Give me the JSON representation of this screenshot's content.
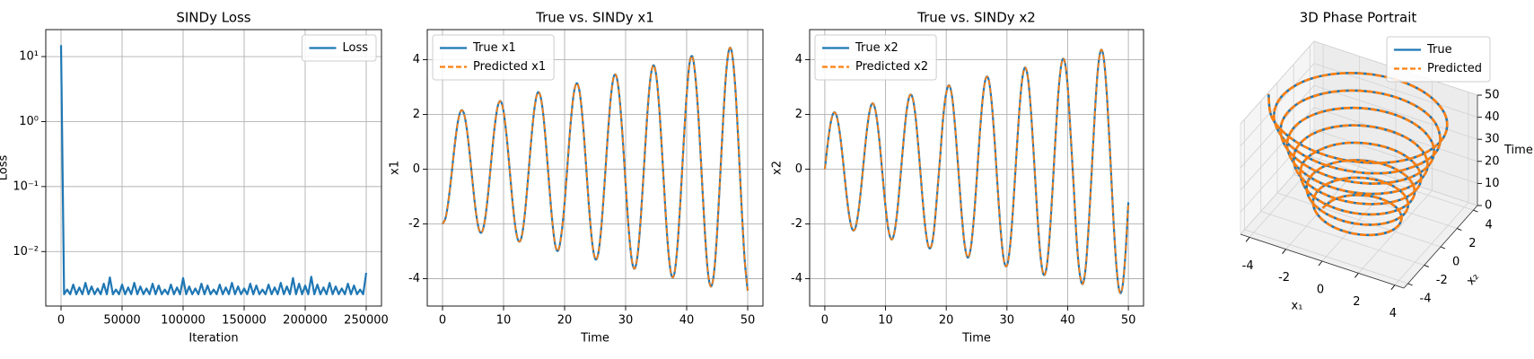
{
  "chart_data": [
    {
      "type": "line",
      "title": "SINDy Loss",
      "xlabel": "Iteration",
      "ylabel": "Loss",
      "yscale": "log",
      "grid": true,
      "legend": "upper right",
      "xlim": [
        -12500,
        262500
      ],
      "xticks": [
        0,
        50000,
        100000,
        150000,
        200000,
        250000
      ],
      "ylim": [
        0.00145,
        26
      ],
      "yticks": [
        {
          "value": 0.01,
          "label": "10⁻²"
        },
        {
          "value": 0.1,
          "label": "10⁻¹"
        },
        {
          "value": 1,
          "label": "10⁰"
        },
        {
          "value": 10,
          "label": "10¹"
        }
      ],
      "x": [
        0,
        2500,
        5000,
        7500,
        10000,
        12500,
        15000,
        17500,
        20000,
        22500,
        25000,
        27500,
        30000,
        32500,
        35000,
        37500,
        40000,
        42500,
        45000,
        47500,
        50000,
        52500,
        55000,
        57500,
        60000,
        62500,
        65000,
        67500,
        70000,
        72500,
        75000,
        77500,
        80000,
        82500,
        85000,
        87500,
        90000,
        92500,
        95000,
        97500,
        100000,
        102500,
        105000,
        107500,
        110000,
        112500,
        115000,
        117500,
        120000,
        122500,
        125000,
        127500,
        130000,
        132500,
        135000,
        137500,
        140000,
        142500,
        145000,
        147500,
        150000,
        152500,
        155000,
        157500,
        160000,
        162500,
        165000,
        167500,
        170000,
        172500,
        175000,
        177500,
        180000,
        182500,
        185000,
        187500,
        190000,
        192500,
        195000,
        197500,
        200000,
        202500,
        205000,
        207500,
        210000,
        212500,
        215000,
        217500,
        220000,
        222500,
        225000,
        227500,
        230000,
        232500,
        235000,
        237500,
        240000,
        242500,
        245000,
        247500,
        250000
      ],
      "series": [
        {
          "name": "Loss",
          "color": "#1f77b4",
          "linestyle": "solid",
          "values": [
            15,
            0.0022,
            0.0026,
            0.0022,
            0.0031,
            0.0022,
            0.0028,
            0.0022,
            0.0033,
            0.0022,
            0.0029,
            0.0022,
            0.0027,
            0.0022,
            0.0032,
            0.0022,
            0.004,
            0.0022,
            0.0026,
            0.0022,
            0.0031,
            0.0022,
            0.0028,
            0.0022,
            0.0033,
            0.0022,
            0.0029,
            0.0022,
            0.0027,
            0.0022,
            0.0032,
            0.0022,
            0.003,
            0.0022,
            0.0026,
            0.0022,
            0.0031,
            0.0022,
            0.0028,
            0.0022,
            0.0039,
            0.0022,
            0.0029,
            0.0022,
            0.0027,
            0.0022,
            0.0032,
            0.0022,
            0.003,
            0.0022,
            0.0026,
            0.0022,
            0.0031,
            0.0022,
            0.0028,
            0.0022,
            0.0033,
            0.0022,
            0.0029,
            0.0022,
            0.0027,
            0.0022,
            0.0032,
            0.0022,
            0.003,
            0.0022,
            0.0026,
            0.0022,
            0.0031,
            0.0022,
            0.0028,
            0.0022,
            0.0033,
            0.0022,
            0.0029,
            0.0022,
            0.0039,
            0.0022,
            0.0032,
            0.0022,
            0.003,
            0.0022,
            0.0041,
            0.0022,
            0.0031,
            0.0022,
            0.0028,
            0.0022,
            0.0033,
            0.0022,
            0.0029,
            0.0022,
            0.0027,
            0.0022,
            0.0032,
            0.0022,
            0.003,
            0.0022,
            0.0026,
            0.0022,
            0.0047
          ]
        }
      ]
    },
    {
      "type": "line",
      "title": "True vs. SINDy x1",
      "xlabel": "Time",
      "ylabel": "x1",
      "grid": true,
      "legend": "upper left",
      "xlim": [
        -2.5,
        52.5
      ],
      "xticks": [
        0,
        10,
        20,
        30,
        40,
        50
      ],
      "ylim": [
        -5,
        5.1
      ],
      "yticks": [
        -4,
        -2,
        0,
        2,
        4
      ],
      "x": [
        0,
        0.5,
        1,
        1.5,
        2,
        2.5,
        3,
        3.5,
        4,
        4.5,
        5,
        5.5,
        6,
        6.5,
        7,
        7.5,
        8,
        8.5,
        9,
        9.5,
        10,
        10.5,
        11,
        11.5,
        12,
        12.5,
        13,
        13.5,
        14,
        14.5,
        15,
        15.5,
        16,
        16.5,
        17,
        17.5,
        18,
        18.5,
        19,
        19.5,
        20,
        20.5,
        21,
        21.5,
        22,
        22.5,
        23,
        23.5,
        24,
        24.5,
        25,
        25.5,
        26,
        26.5,
        27,
        27.5,
        28,
        28.5,
        29,
        29.5,
        30,
        30.5,
        31,
        31.5,
        32,
        32.5,
        33,
        33.5,
        34,
        34.5,
        35,
        35.5,
        36,
        36.5,
        37,
        37.5,
        38,
        38.5,
        39,
        39.5,
        40,
        40.5,
        41,
        41.5,
        42,
        42.5,
        43,
        43.5,
        44,
        44.5,
        45,
        45.5,
        46,
        46.5,
        47,
        47.5,
        48,
        48.5,
        49,
        49.5,
        50
      ],
      "series": [
        {
          "name": "True x1",
          "color": "#1f77b4",
          "linestyle": "solid",
          "values": [
            -2,
            -1.78,
            -1.11,
            -0.15,
            0.88,
            1.71,
            2.13,
            2.04,
            1.44,
            0.47,
            -0.64,
            -1.62,
            -2.22,
            -2.28,
            -1.78,
            -0.83,
            0.35,
            1.47,
            2.25,
            2.49,
            2.11,
            1.21,
            -0.01,
            -1.26,
            -2.21,
            -2.64,
            -2.43,
            -1.61,
            -0.37,
            0.98,
            2.11,
            2.75,
            2.71,
            2.01,
            0.79,
            -0.64,
            -1.94,
            -2.81,
            -2.95,
            -2.34,
            -1.24,
            0.24,
            1.69,
            2.76,
            3.14,
            2.77,
            1.7,
            0.2,
            -1.38,
            -2.64,
            -3.27,
            -3.1,
            -2.17,
            -0.68,
            0.99,
            2.45,
            3.33,
            3.39,
            2.62,
            1.2,
            -0.55,
            -2.18,
            -3.3,
            -3.63,
            -3.06,
            -1.73,
            0.05,
            1.84,
            3.2,
            3.79,
            3.45,
            2.26,
            0.5,
            -1.42,
            -3,
            -3.87,
            -3.8,
            -2.78,
            -1.07,
            0.92,
            2.72,
            3.91,
            4.08,
            3.21,
            1.67,
            -0.37,
            -2.35,
            -3.8,
            -4.29,
            -3.75,
            -2.28,
            -0.23,
            1.9,
            3.6,
            4.41,
            4.14,
            2.88,
            0.87,
            -1.37,
            -3.3,
            -4.44
          ]
        },
        {
          "name": "Predicted x1",
          "color": "#ff7f0e",
          "linestyle": "dashed",
          "values": [
            -2,
            -1.78,
            -1.11,
            -0.15,
            0.88,
            1.71,
            2.13,
            2.04,
            1.44,
            0.47,
            -0.64,
            -1.62,
            -2.22,
            -2.28,
            -1.78,
            -0.83,
            0.35,
            1.47,
            2.25,
            2.49,
            2.11,
            1.21,
            -0.01,
            -1.26,
            -2.21,
            -2.64,
            -2.43,
            -1.61,
            -0.37,
            0.98,
            2.11,
            2.75,
            2.71,
            2.01,
            0.79,
            -0.64,
            -1.94,
            -2.81,
            -2.95,
            -2.34,
            -1.24,
            0.24,
            1.69,
            2.76,
            3.14,
            2.77,
            1.7,
            0.2,
            -1.38,
            -2.64,
            -3.27,
            -3.1,
            -2.17,
            -0.68,
            0.99,
            2.45,
            3.33,
            3.39,
            2.62,
            1.2,
            -0.55,
            -2.18,
            -3.3,
            -3.63,
            -3.06,
            -1.73,
            0.05,
            1.84,
            3.2,
            3.79,
            3.45,
            2.26,
            0.5,
            -1.42,
            -3,
            -3.87,
            -3.8,
            -2.78,
            -1.07,
            0.92,
            2.72,
            3.91,
            4.08,
            3.21,
            1.67,
            -0.37,
            -2.35,
            -3.8,
            -4.29,
            -3.75,
            -2.28,
            -0.23,
            1.9,
            3.6,
            4.41,
            4.14,
            2.88,
            0.87,
            -1.37,
            -3.3,
            -4.44
          ]
        }
      ]
    },
    {
      "type": "line",
      "title": "True vs. SINDy x2",
      "xlabel": "Time",
      "ylabel": "x2",
      "grid": true,
      "legend": "upper left",
      "xlim": [
        -2.5,
        52.5
      ],
      "xticks": [
        0,
        10,
        20,
        30,
        40,
        50
      ],
      "ylim": [
        -5,
        5.1
      ],
      "yticks": [
        -4,
        -2,
        0,
        2,
        4
      ],
      "x": [
        0,
        0.5,
        1,
        1.5,
        2,
        2.5,
        3,
        3.5,
        4,
        4.5,
        5,
        5.5,
        6,
        6.5,
        7,
        7.5,
        8,
        8.5,
        9,
        9.5,
        10,
        10.5,
        11,
        11.5,
        12,
        12.5,
        13,
        13.5,
        14,
        14.5,
        15,
        15.5,
        16,
        16.5,
        17,
        17.5,
        18,
        18.5,
        19,
        19.5,
        20,
        20.5,
        21,
        21.5,
        22,
        22.5,
        23,
        23.5,
        24,
        24.5,
        25,
        25.5,
        26,
        26.5,
        27,
        27.5,
        28,
        28.5,
        29,
        29.5,
        30,
        30.5,
        31,
        31.5,
        32,
        32.5,
        33,
        33.5,
        34,
        34.5,
        35,
        35.5,
        36,
        36.5,
        37,
        37.5,
        38,
        38.5,
        39,
        39.5,
        40,
        40.5,
        41,
        41.5,
        42,
        42.5,
        43,
        43.5,
        44,
        44.5,
        45,
        45.5,
        46,
        46.5,
        47,
        47.5,
        48,
        48.5,
        49,
        49.5,
        50
      ],
      "series": [
        {
          "name": "True x2",
          "color": "#1f77b4",
          "linestyle": "solid",
          "values": [
            0,
            0.97,
            1.73,
            2.07,
            1.91,
            1.27,
            0.3,
            -0.77,
            -1.67,
            -2.18,
            -2.17,
            -1.61,
            -0.65,
            0.5,
            1.55,
            2.24,
            2.39,
            1.95,
            1.02,
            -0.19,
            -1.37,
            -2.24,
            -2.57,
            -2.27,
            -1.41,
            -0.18,
            1.12,
            2.17,
            2.7,
            2.57,
            1.81,
            0.58,
            -0.82,
            -2.03,
            -2.77,
            -2.84,
            -2.2,
            -0.92,
            0.45,
            1.9,
            2.78,
            3.06,
            2.59,
            1.45,
            -0.03,
            -1.54,
            -2.7,
            -3.22,
            -2.94,
            -1.93,
            -0.44,
            1.21,
            2.56,
            3.31,
            3.26,
            2.4,
            0.94,
            -0.78,
            -2.33,
            -3.33,
            -3.52,
            -2.85,
            -1.46,
            0.31,
            2.02,
            3.26,
            3.72,
            3.26,
            1.99,
            0.22,
            -1.64,
            -3.11,
            -3.84,
            -3.63,
            -2.53,
            -0.78,
            1.18,
            2.87,
            3.88,
            3.95,
            3.04,
            1.24,
            -0.65,
            -2.64,
            -3.83,
            -4.19,
            -3.52,
            -1.94,
            0.08,
            2.14,
            3.69,
            4.36,
            3.96,
            2.57,
            0.55,
            -1.68,
            -3.45,
            -4.44,
            -4.34,
            -3.17,
            -1.21
          ]
        },
        {
          "name": "Predicted x2",
          "color": "#ff7f0e",
          "linestyle": "dashed",
          "values": [
            0,
            0.97,
            1.73,
            2.07,
            1.91,
            1.27,
            0.3,
            -0.77,
            -1.67,
            -2.18,
            -2.17,
            -1.61,
            -0.65,
            0.5,
            1.55,
            2.24,
            2.39,
            1.95,
            1.02,
            -0.19,
            -1.37,
            -2.24,
            -2.57,
            -2.27,
            -1.41,
            -0.18,
            1.12,
            2.17,
            2.7,
            2.57,
            1.81,
            0.58,
            -0.82,
            -2.03,
            -2.77,
            -2.84,
            -2.2,
            -0.92,
            0.45,
            1.9,
            2.78,
            3.06,
            2.59,
            1.45,
            -0.03,
            -1.54,
            -2.7,
            -3.22,
            -2.94,
            -1.93,
            -0.44,
            1.21,
            2.56,
            3.31,
            3.26,
            2.4,
            0.94,
            -0.78,
            -2.33,
            -3.33,
            -3.52,
            -2.85,
            -1.46,
            0.31,
            2.02,
            3.26,
            3.72,
            3.26,
            1.99,
            0.22,
            -1.64,
            -3.11,
            -3.84,
            -3.63,
            -2.53,
            -0.78,
            1.18,
            2.87,
            3.88,
            3.95,
            3.04,
            1.24,
            -0.65,
            -2.64,
            -3.83,
            -4.19,
            -3.52,
            -1.94,
            0.08,
            2.14,
            3.69,
            4.36,
            3.96,
            2.57,
            0.55,
            -1.68,
            -3.45,
            -4.44,
            -4.34,
            -3.17,
            -1.21
          ]
        }
      ]
    },
    {
      "type": "line3d",
      "title": "3D Phase Portrait",
      "xlabel": "x₁",
      "ylabel": "x₂",
      "zlabel": "Time",
      "legend": "upper right",
      "xlim": [
        -4.5,
        4.5
      ],
      "ylim": [
        -4.5,
        4.5
      ],
      "zlim": [
        0,
        50
      ],
      "xticks": [
        -4,
        -2,
        0,
        2,
        4
      ],
      "yticks": [
        -4,
        -2,
        0,
        2,
        4
      ],
      "zticks": [
        0,
        10,
        20,
        30,
        40,
        50
      ],
      "series": [
        {
          "name": "True",
          "color": "#1f77b4",
          "linestyle": "solid"
        },
        {
          "name": "Predicted",
          "color": "#ff7f0e",
          "linestyle": "dashed"
        }
      ]
    }
  ]
}
